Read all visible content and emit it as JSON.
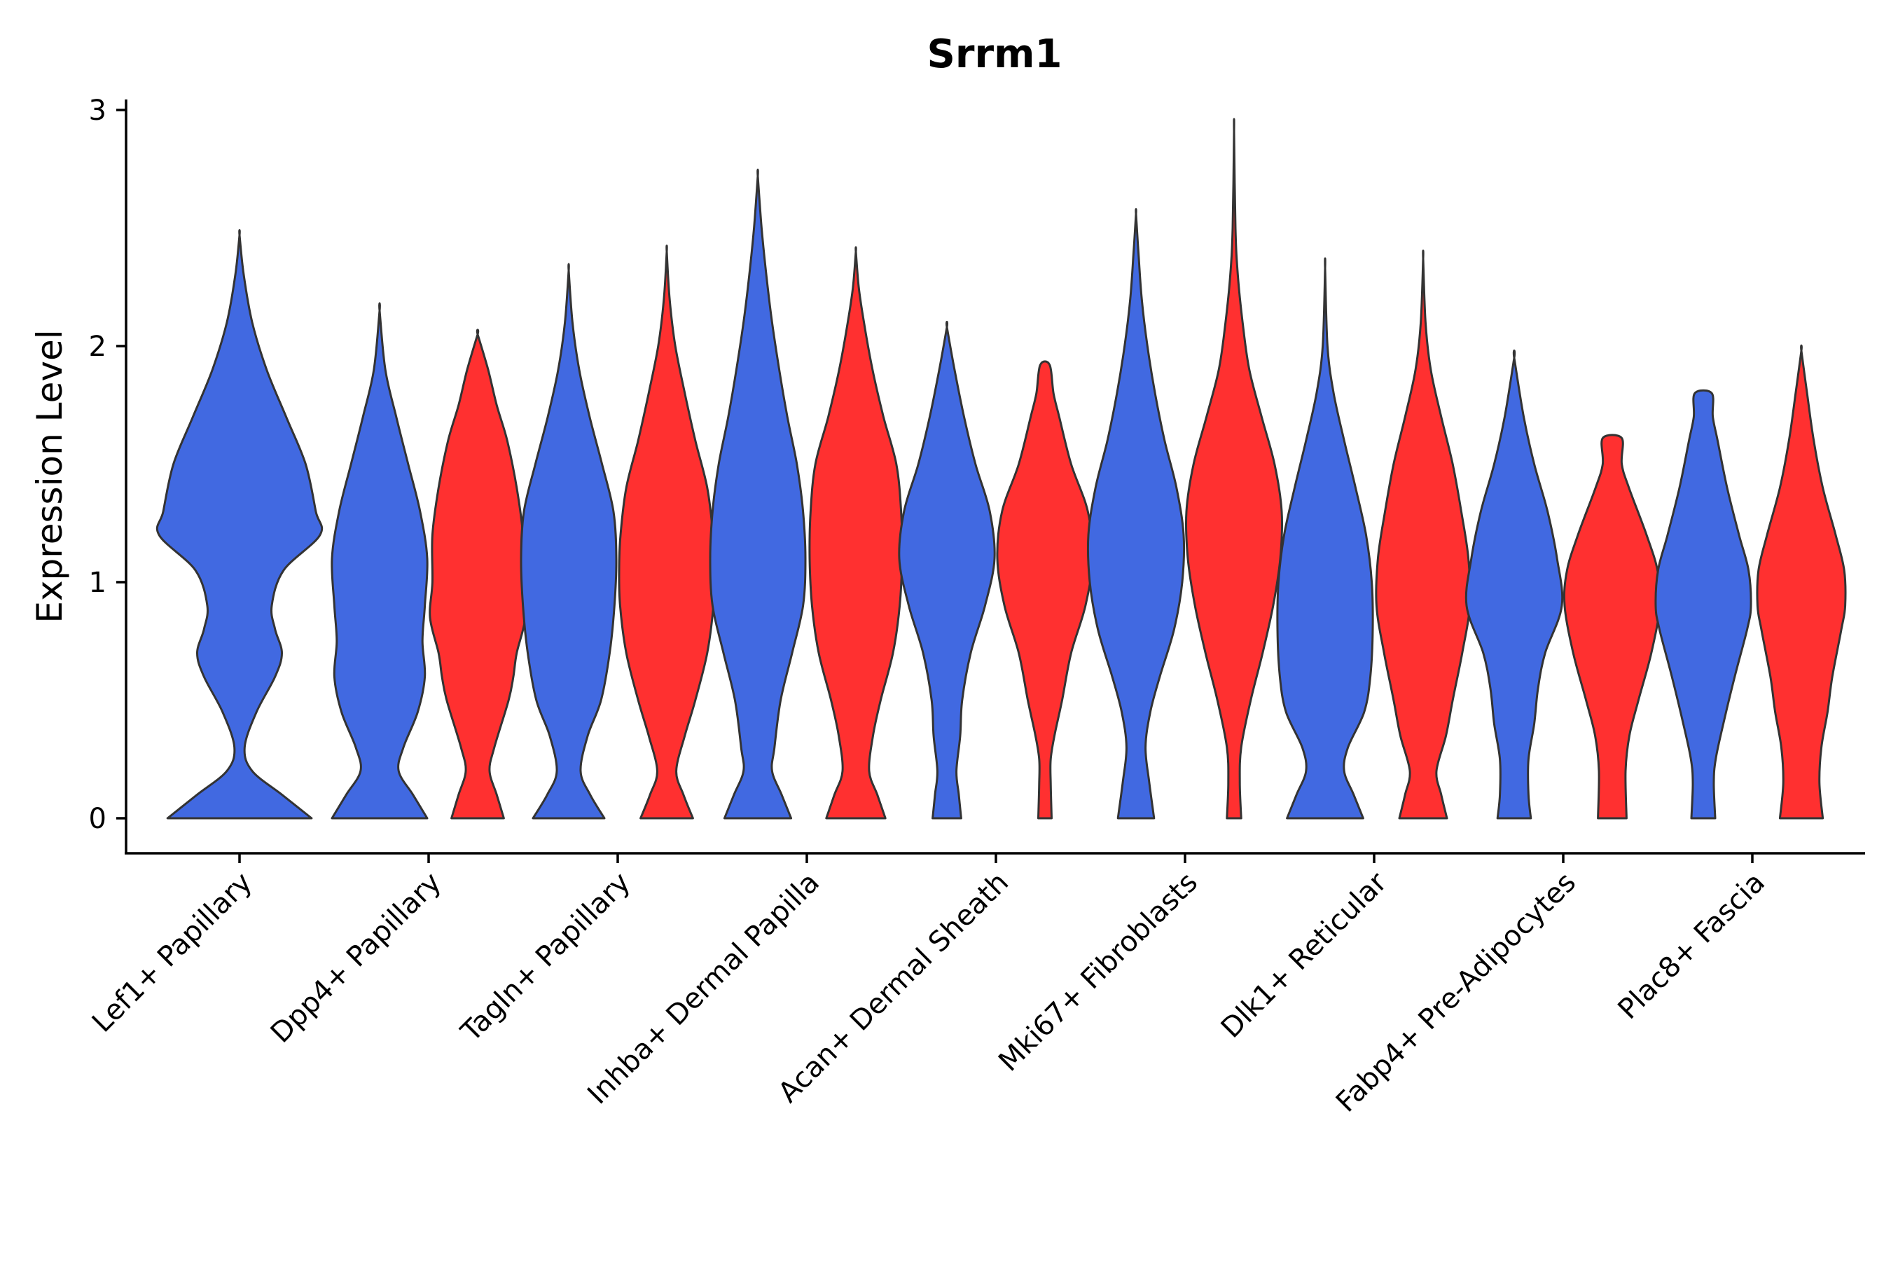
{
  "chart_data": {
    "type": "violin",
    "title": "Srrm1",
    "xlabel": "",
    "ylabel": "Expression Level",
    "ylim": [
      -0.15,
      3.05
    ],
    "yticks": [
      0,
      1,
      2,
      3
    ],
    "grid": false,
    "legend": "none",
    "colors": {
      "blue": "#4169E1",
      "red": "#FF3030"
    },
    "categories": [
      "Lef1+ Papillary",
      "Dpp4+ Papillary",
      "Tagln+ Papillary",
      "Inhba+ Dermal Papilla",
      "Acan+ Dermal Sheath",
      "Mki67+ Fibroblasts",
      "Dlk1+ Reticular",
      "Fabp4+ Pre-Adipocytes",
      "Plac8+ Fascia"
    ],
    "violins": [
      {
        "category": "Lef1+ Papillary",
        "group": "blue",
        "max": 2.47,
        "profile": [
          [
            0,
            0.85
          ],
          [
            0.1,
            0.5
          ],
          [
            0.2,
            0.15
          ],
          [
            0.3,
            0.06
          ],
          [
            0.45,
            0.2
          ],
          [
            0.6,
            0.42
          ],
          [
            0.7,
            0.5
          ],
          [
            0.8,
            0.42
          ],
          [
            0.9,
            0.38
          ],
          [
            1.05,
            0.52
          ],
          [
            1.2,
            0.95
          ],
          [
            1.3,
            0.9
          ],
          [
            1.5,
            0.78
          ],
          [
            1.7,
            0.55
          ],
          [
            1.9,
            0.32
          ],
          [
            2.1,
            0.15
          ],
          [
            2.3,
            0.05
          ],
          [
            2.47,
            0
          ]
        ]
      },
      {
        "category": "Dpp4+ Papillary",
        "group": "blue",
        "max": 2.15,
        "profile": [
          [
            0,
            1
          ],
          [
            0.1,
            0.7
          ],
          [
            0.2,
            0.4
          ],
          [
            0.3,
            0.5
          ],
          [
            0.45,
            0.8
          ],
          [
            0.6,
            0.95
          ],
          [
            0.75,
            0.9
          ],
          [
            0.9,
            0.95
          ],
          [
            1.1,
            1
          ],
          [
            1.3,
            0.85
          ],
          [
            1.5,
            0.6
          ],
          [
            1.7,
            0.35
          ],
          [
            1.9,
            0.12
          ],
          [
            2.15,
            0
          ]
        ]
      },
      {
        "category": "Dpp4+ Papillary",
        "group": "red",
        "max": 2.05,
        "profile": [
          [
            0,
            0.55
          ],
          [
            0.1,
            0.4
          ],
          [
            0.2,
            0.25
          ],
          [
            0.3,
            0.35
          ],
          [
            0.5,
            0.65
          ],
          [
            0.6,
            0.75
          ],
          [
            0.7,
            0.82
          ],
          [
            0.85,
            1
          ],
          [
            1,
            0.95
          ],
          [
            1.2,
            0.95
          ],
          [
            1.4,
            0.82
          ],
          [
            1.6,
            0.62
          ],
          [
            1.75,
            0.4
          ],
          [
            1.9,
            0.22
          ],
          [
            2.05,
            0
          ]
        ]
      },
      {
        "category": "Tagln+ Papillary",
        "group": "blue",
        "max": 2.32,
        "profile": [
          [
            0,
            0.75
          ],
          [
            0.1,
            0.45
          ],
          [
            0.2,
            0.25
          ],
          [
            0.35,
            0.4
          ],
          [
            0.5,
            0.68
          ],
          [
            0.7,
            0.86
          ],
          [
            0.9,
            0.96
          ],
          [
            1.1,
            1
          ],
          [
            1.3,
            0.94
          ],
          [
            1.5,
            0.7
          ],
          [
            1.7,
            0.44
          ],
          [
            1.9,
            0.22
          ],
          [
            2.1,
            0.08
          ],
          [
            2.32,
            0
          ]
        ]
      },
      {
        "category": "Tagln+ Papillary",
        "group": "red",
        "max": 2.4,
        "profile": [
          [
            0,
            0.55
          ],
          [
            0.1,
            0.35
          ],
          [
            0.2,
            0.2
          ],
          [
            0.35,
            0.38
          ],
          [
            0.5,
            0.6
          ],
          [
            0.7,
            0.85
          ],
          [
            0.9,
            0.98
          ],
          [
            1.05,
            1
          ],
          [
            1.2,
            0.97
          ],
          [
            1.4,
            0.85
          ],
          [
            1.6,
            0.6
          ],
          [
            1.8,
            0.38
          ],
          [
            2,
            0.18
          ],
          [
            2.2,
            0.06
          ],
          [
            2.4,
            0
          ]
        ]
      },
      {
        "category": "Inhba+ Dermal Papilla",
        "group": "blue",
        "max": 2.72,
        "profile": [
          [
            0,
            0.7
          ],
          [
            0.1,
            0.5
          ],
          [
            0.2,
            0.3
          ],
          [
            0.3,
            0.35
          ],
          [
            0.5,
            0.48
          ],
          [
            0.7,
            0.72
          ],
          [
            0.9,
            0.95
          ],
          [
            1.1,
            1
          ],
          [
            1.3,
            0.95
          ],
          [
            1.5,
            0.82
          ],
          [
            1.7,
            0.62
          ],
          [
            1.9,
            0.45
          ],
          [
            2.1,
            0.3
          ],
          [
            2.3,
            0.18
          ],
          [
            2.5,
            0.08
          ],
          [
            2.72,
            0
          ]
        ]
      },
      {
        "category": "Inhba+ Dermal Papilla",
        "group": "red",
        "max": 2.4,
        "profile": [
          [
            0,
            0.62
          ],
          [
            0.1,
            0.45
          ],
          [
            0.2,
            0.28
          ],
          [
            0.35,
            0.36
          ],
          [
            0.5,
            0.52
          ],
          [
            0.7,
            0.78
          ],
          [
            0.9,
            0.92
          ],
          [
            1.1,
            0.97
          ],
          [
            1.3,
            0.95
          ],
          [
            1.5,
            0.85
          ],
          [
            1.7,
            0.58
          ],
          [
            1.9,
            0.35
          ],
          [
            2.1,
            0.17
          ],
          [
            2.25,
            0.06
          ],
          [
            2.4,
            0
          ]
        ]
      },
      {
        "category": "Acan+ Dermal Sheath",
        "group": "blue",
        "max": 2.08,
        "profile": [
          [
            0,
            0.3
          ],
          [
            0.1,
            0.25
          ],
          [
            0.2,
            0.2
          ],
          [
            0.35,
            0.28
          ],
          [
            0.5,
            0.32
          ],
          [
            0.7,
            0.5
          ],
          [
            0.9,
            0.8
          ],
          [
            1.1,
            1
          ],
          [
            1.3,
            0.9
          ],
          [
            1.5,
            0.6
          ],
          [
            1.7,
            0.36
          ],
          [
            1.9,
            0.16
          ],
          [
            2.08,
            0
          ]
        ]
      },
      {
        "category": "Acan+ Dermal Sheath",
        "group": "red",
        "max": 1.92,
        "profile": [
          [
            0,
            0.14
          ],
          [
            0.15,
            0.12
          ],
          [
            0.25,
            0.12
          ],
          [
            0.35,
            0.2
          ],
          [
            0.5,
            0.36
          ],
          [
            0.7,
            0.55
          ],
          [
            0.9,
            0.85
          ],
          [
            1.1,
            1
          ],
          [
            1.3,
            0.9
          ],
          [
            1.5,
            0.55
          ],
          [
            1.7,
            0.3
          ],
          [
            1.8,
            0.18
          ],
          [
            1.92,
            0.1
          ]
        ]
      },
      {
        "category": "Mki67+ Fibroblasts",
        "group": "blue",
        "max": 2.56,
        "profile": [
          [
            0,
            0.38
          ],
          [
            0.15,
            0.28
          ],
          [
            0.3,
            0.2
          ],
          [
            0.45,
            0.3
          ],
          [
            0.6,
            0.5
          ],
          [
            0.8,
            0.8
          ],
          [
            1,
            0.97
          ],
          [
            1.2,
            1
          ],
          [
            1.4,
            0.85
          ],
          [
            1.6,
            0.6
          ],
          [
            1.8,
            0.4
          ],
          [
            2,
            0.24
          ],
          [
            2.2,
            0.12
          ],
          [
            2.4,
            0.05
          ],
          [
            2.56,
            0
          ]
        ]
      },
      {
        "category": "Mki67+ Fibroblasts",
        "group": "red",
        "max": 2.91,
        "profile": [
          [
            0,
            0.15
          ],
          [
            0.15,
            0.12
          ],
          [
            0.3,
            0.15
          ],
          [
            0.5,
            0.35
          ],
          [
            0.7,
            0.6
          ],
          [
            0.9,
            0.82
          ],
          [
            1.1,
            0.97
          ],
          [
            1.3,
            1
          ],
          [
            1.5,
            0.85
          ],
          [
            1.7,
            0.58
          ],
          [
            1.9,
            0.32
          ],
          [
            2.1,
            0.18
          ],
          [
            2.3,
            0.08
          ],
          [
            2.5,
            0.03
          ],
          [
            2.91,
            0
          ]
        ]
      },
      {
        "category": "Dlk1+ Reticular",
        "group": "blue",
        "max": 2.33,
        "profile": [
          [
            0,
            0.8
          ],
          [
            0.1,
            0.6
          ],
          [
            0.2,
            0.4
          ],
          [
            0.3,
            0.48
          ],
          [
            0.45,
            0.82
          ],
          [
            0.6,
            0.95
          ],
          [
            0.8,
            1
          ],
          [
            1,
            0.98
          ],
          [
            1.2,
            0.86
          ],
          [
            1.4,
            0.64
          ],
          [
            1.6,
            0.4
          ],
          [
            1.8,
            0.18
          ],
          [
            2,
            0.05
          ],
          [
            2.33,
            0
          ]
        ]
      },
      {
        "category": "Dlk1+ Reticular",
        "group": "red",
        "max": 2.37,
        "profile": [
          [
            0,
            0.5
          ],
          [
            0.1,
            0.38
          ],
          [
            0.2,
            0.28
          ],
          [
            0.35,
            0.48
          ],
          [
            0.5,
            0.62
          ],
          [
            0.7,
            0.82
          ],
          [
            0.9,
            0.98
          ],
          [
            1.1,
            0.95
          ],
          [
            1.3,
            0.8
          ],
          [
            1.5,
            0.62
          ],
          [
            1.7,
            0.38
          ],
          [
            1.9,
            0.16
          ],
          [
            2.1,
            0.05
          ],
          [
            2.37,
            0
          ]
        ]
      },
      {
        "category": "Fabp4+ Pre-Adipocytes",
        "group": "blue",
        "max": 1.95,
        "profile": [
          [
            0,
            0.35
          ],
          [
            0.1,
            0.3
          ],
          [
            0.25,
            0.3
          ],
          [
            0.4,
            0.42
          ],
          [
            0.55,
            0.5
          ],
          [
            0.7,
            0.65
          ],
          [
            0.9,
            1
          ],
          [
            1.1,
            0.9
          ],
          [
            1.3,
            0.7
          ],
          [
            1.5,
            0.42
          ],
          [
            1.7,
            0.2
          ],
          [
            1.95,
            0
          ]
        ]
      },
      {
        "category": "Fabp4+ Pre-Adipocytes",
        "group": "red",
        "max": 1.61,
        "profile": [
          [
            0,
            0.3
          ],
          [
            0.2,
            0.28
          ],
          [
            0.35,
            0.36
          ],
          [
            0.5,
            0.55
          ],
          [
            0.7,
            0.82
          ],
          [
            0.9,
            1
          ],
          [
            1.05,
            0.95
          ],
          [
            1.2,
            0.72
          ],
          [
            1.4,
            0.35
          ],
          [
            1.5,
            0.2
          ],
          [
            1.61,
            0.2
          ]
        ]
      },
      {
        "category": "Plac8+ Fascia",
        "group": "blue",
        "max": 1.8,
        "profile": [
          [
            0,
            0.25
          ],
          [
            0.15,
            0.22
          ],
          [
            0.25,
            0.26
          ],
          [
            0.4,
            0.42
          ],
          [
            0.6,
            0.66
          ],
          [
            0.8,
            0.92
          ],
          [
            0.9,
            1
          ],
          [
            1.05,
            0.95
          ],
          [
            1.2,
            0.75
          ],
          [
            1.4,
            0.5
          ],
          [
            1.6,
            0.3
          ],
          [
            1.7,
            0.2
          ],
          [
            1.8,
            0.18
          ]
        ]
      },
      {
        "category": "Plac8+ Fascia",
        "group": "red",
        "max": 1.98,
        "profile": [
          [
            0,
            0.45
          ],
          [
            0.15,
            0.38
          ],
          [
            0.3,
            0.42
          ],
          [
            0.45,
            0.55
          ],
          [
            0.6,
            0.65
          ],
          [
            0.8,
            0.84
          ],
          [
            0.9,
            0.92
          ],
          [
            1.05,
            0.9
          ],
          [
            1.2,
            0.72
          ],
          [
            1.4,
            0.45
          ],
          [
            1.6,
            0.26
          ],
          [
            1.8,
            0.12
          ],
          [
            1.98,
            0
          ]
        ]
      }
    ]
  }
}
